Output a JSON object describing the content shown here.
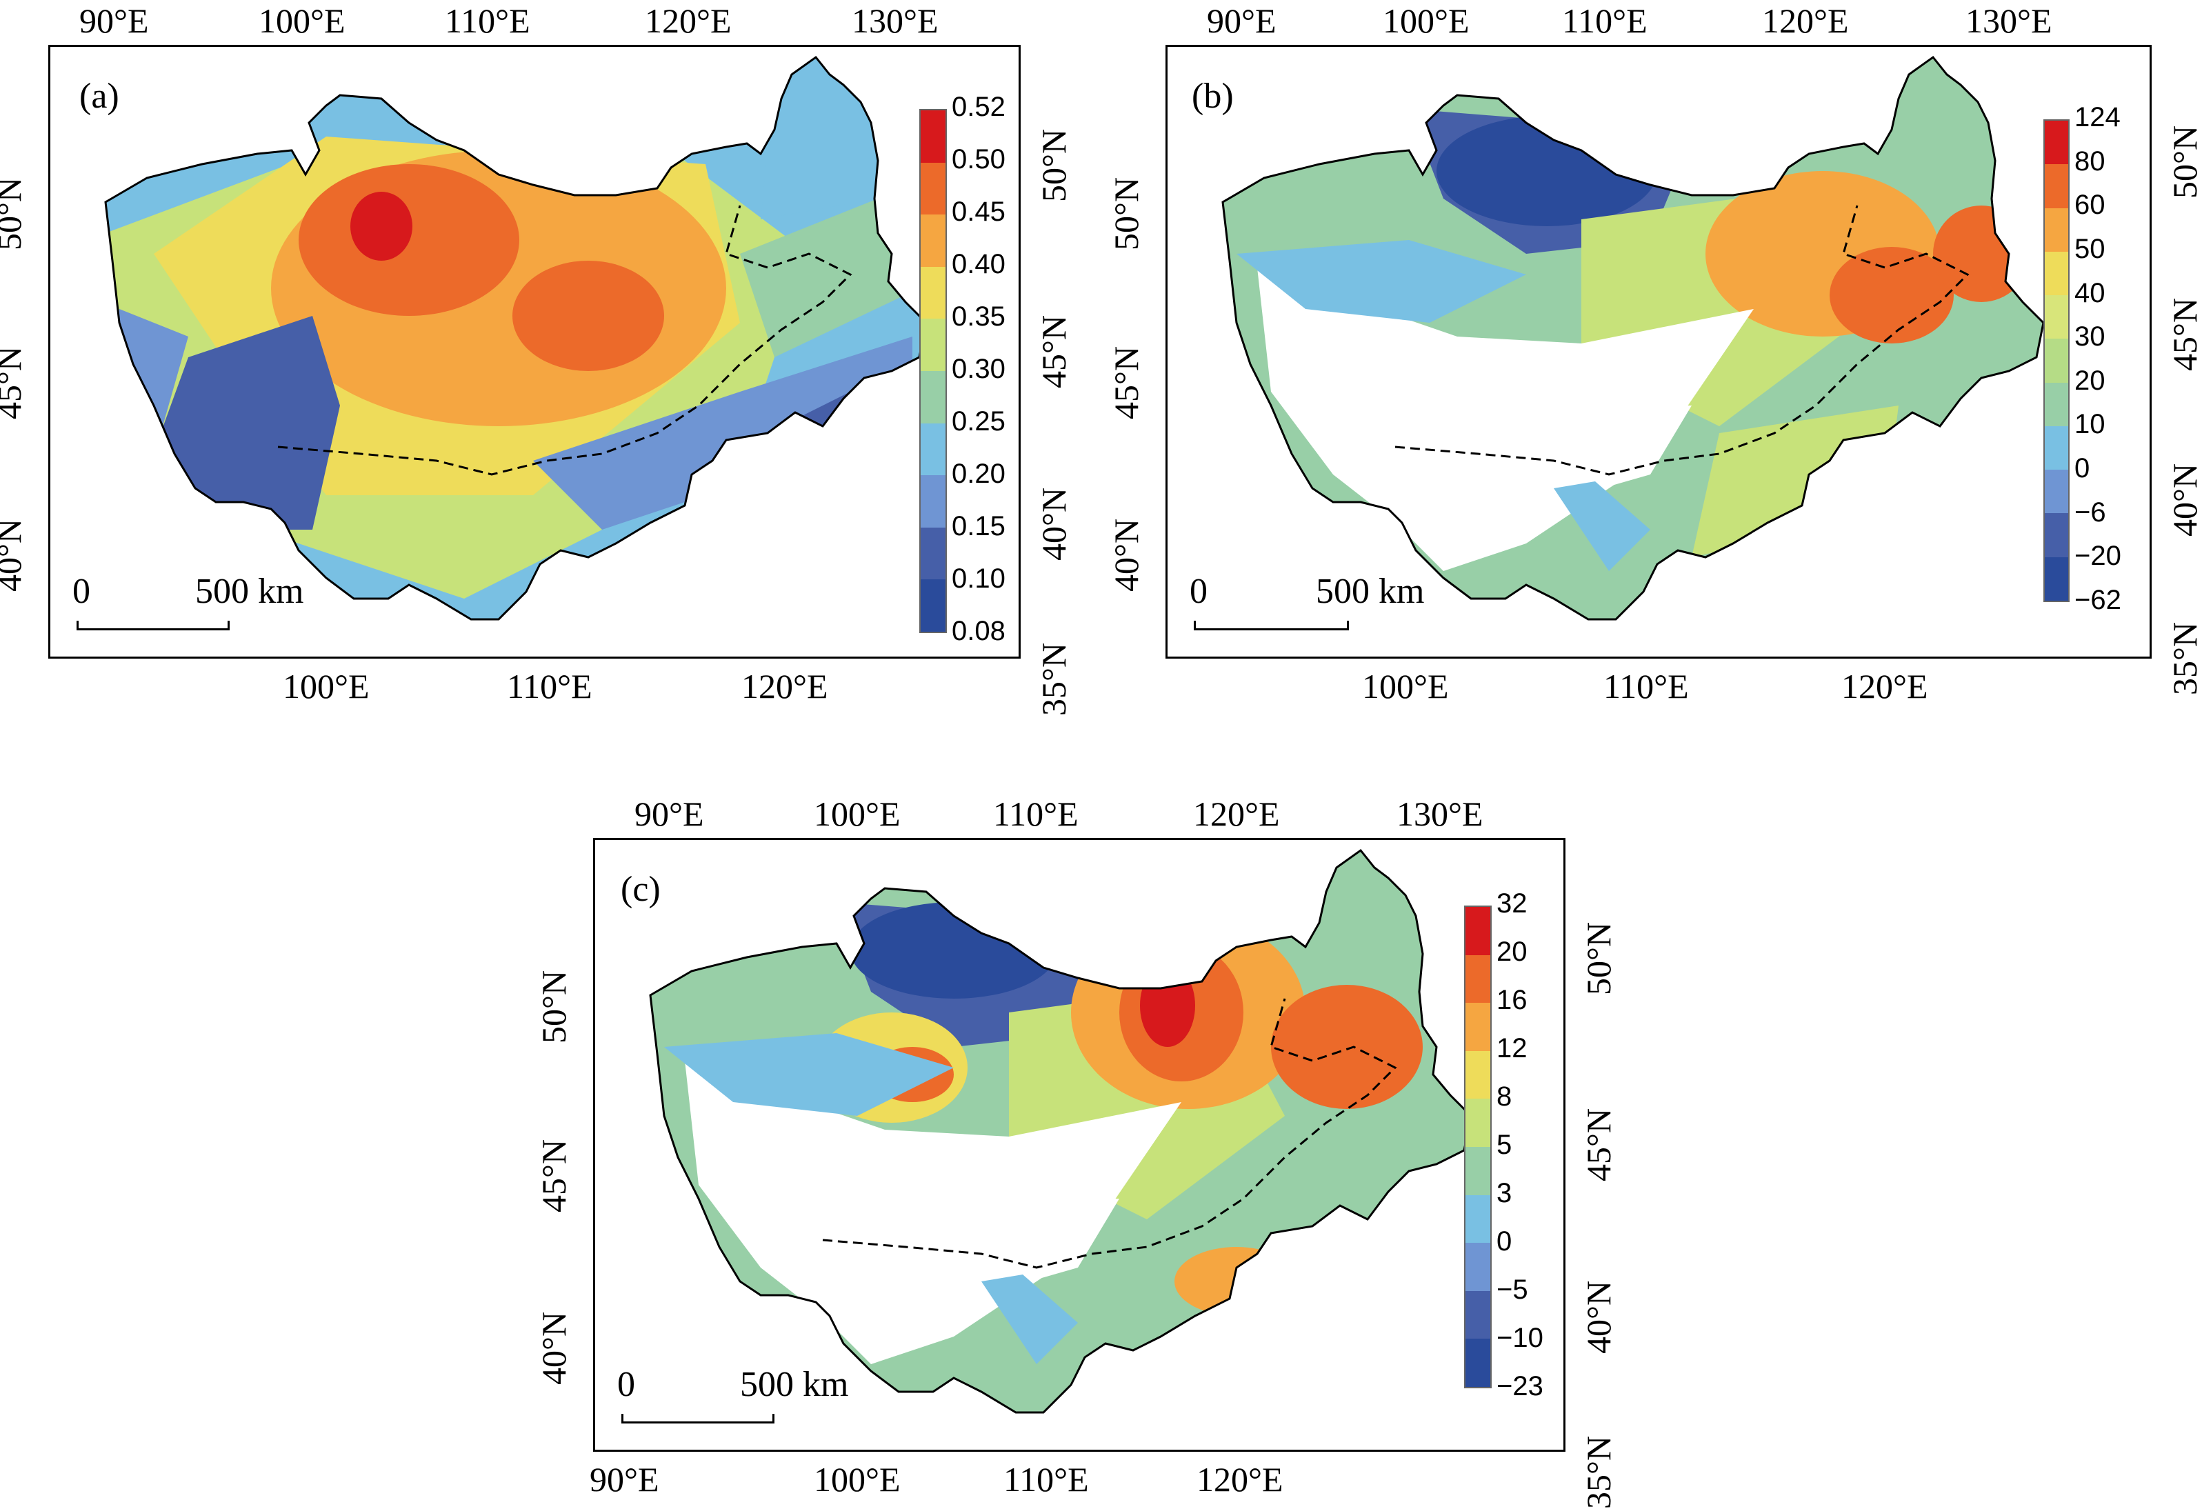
{
  "panels": {
    "a": {
      "label": "(a)",
      "top_lon": [
        "90°E",
        "100°E",
        "110°E",
        "120°E",
        "130°E"
      ],
      "bottom_lon": [
        "100°E",
        "110°E",
        "120°E"
      ],
      "left_lat": [
        "50°N",
        "45°N",
        "40°N"
      ],
      "right_lat": [
        "50°N",
        "45°N",
        "40°N",
        "35°N"
      ],
      "colorbar": [
        "0.52",
        "0.50",
        "0.45",
        "0.40",
        "0.35",
        "0.30",
        "0.25",
        "0.20",
        "0.15",
        "0.10",
        "0.08"
      ],
      "scale": {
        "zero": "0",
        "dist": "500 km"
      }
    },
    "b": {
      "label": "(b)",
      "top_lon": [
        "90°E",
        "100°E",
        "110°E",
        "120°E",
        "130°E"
      ],
      "bottom_lon": [
        "100°E",
        "110°E",
        "120°E"
      ],
      "left_lat": [
        "50°N",
        "45°N",
        "40°N"
      ],
      "right_lat": [
        "50°N",
        "45°N",
        "40°N",
        "35°N"
      ],
      "colorbar": [
        "124",
        "80",
        "60",
        "50",
        "40",
        "30",
        "20",
        "10",
        "0",
        "−6",
        "−20",
        "−62"
      ],
      "scale": {
        "zero": "0",
        "dist": "500 km"
      }
    },
    "c": {
      "label": "(c)",
      "top_lon": [
        "90°E",
        "100°E",
        "110°E",
        "120°E",
        "130°E"
      ],
      "bottom_lon": [
        "90°E",
        "100°E",
        "110°E",
        "120°E"
      ],
      "left_lat": [
        "50°N",
        "45°N",
        "40°N"
      ],
      "right_lat": [
        "50°N",
        "45°N",
        "40°N",
        "35°N"
      ],
      "colorbar": [
        "32",
        "20",
        "16",
        "12",
        "8",
        "5",
        "3",
        "0",
        "−5",
        "−10",
        "−23"
      ],
      "scale": {
        "zero": "0",
        "dist": "500 km"
      }
    }
  },
  "colors": {
    "scale10": [
      "#d7191c",
      "#ec6a2a",
      "#f5a641",
      "#eedc5a",
      "#c7e27a",
      "#98cfa7",
      "#79c0e3",
      "#6f95d3",
      "#465fa8",
      "#2a4b9b"
    ],
    "scale11": [
      "#d7191c",
      "#ec6a2a",
      "#f5a641",
      "#eedc5a",
      "#d8e57a",
      "#b5dc86",
      "#98cfa7",
      "#79c0e3",
      "#6f95d3",
      "#465fa8",
      "#2a4b9b"
    ]
  }
}
